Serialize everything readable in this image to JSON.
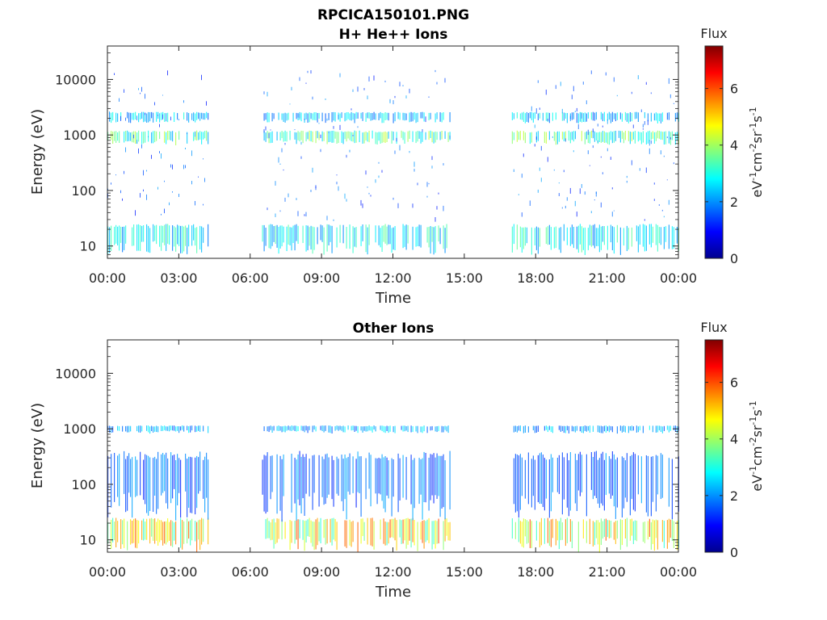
{
  "figure": {
    "title_line1": "RPCICA150101.PNG"
  },
  "chart_data": [
    {
      "type": "heatmap",
      "title": "H+ He++ Ions",
      "xlabel": "Time",
      "ylabel": "Energy (eV)",
      "x_ticks": [
        "00:00",
        "03:00",
        "06:00",
        "09:00",
        "12:00",
        "15:00",
        "18:00",
        "21:00",
        "00:00"
      ],
      "x_range_hours": [
        0,
        24
      ],
      "y_scale": "log",
      "y_range": [
        6,
        40000
      ],
      "y_ticks": [
        10,
        100,
        1000,
        10000
      ],
      "y_tick_labels": [
        "10",
        "100",
        "1000",
        "10000"
      ],
      "colorbar": {
        "title": "Flux",
        "label": "eV-1cm-2sr-1s-1",
        "range": [
          0,
          7.5
        ],
        "ticks": [
          0,
          2,
          4,
          6
        ],
        "colormap": "jet"
      },
      "data_intervals_hours": [
        [
          0,
          4.25
        ],
        [
          6.5,
          14.4
        ],
        [
          17.0,
          24
        ]
      ],
      "bands": [
        {
          "energy_range_eV": [
            8,
            25
          ],
          "level": 3.0
        },
        {
          "energy_range_eV": [
            700,
            1200
          ],
          "level": 3.6
        },
        {
          "energy_range_eV": [
            1700,
            2600
          ],
          "level": 2.6
        },
        {
          "energy_range_eV": [
            30,
            15000
          ],
          "level": 1.8
        }
      ]
    },
    {
      "type": "heatmap",
      "title": "Other Ions",
      "xlabel": "Time",
      "ylabel": "Energy (eV)",
      "x_ticks": [
        "00:00",
        "03:00",
        "06:00",
        "09:00",
        "12:00",
        "15:00",
        "18:00",
        "21:00",
        "00:00"
      ],
      "x_range_hours": [
        0,
        24
      ],
      "y_scale": "log",
      "y_range": [
        6,
        40000
      ],
      "y_ticks": [
        10,
        100,
        1000,
        10000
      ],
      "y_tick_labels": [
        "10",
        "100",
        "1000",
        "10000"
      ],
      "colorbar": {
        "title": "Flux",
        "label": "eV-1cm-2sr-1s-1",
        "range": [
          0,
          7.5
        ],
        "ticks": [
          0,
          2,
          4,
          6
        ],
        "colormap": "jet"
      },
      "data_intervals_hours": [
        [
          0,
          4.25
        ],
        [
          6.5,
          14.4
        ],
        [
          17.0,
          24
        ]
      ],
      "bands": [
        {
          "energy_range_eV": [
            7,
            25
          ],
          "level": 5.0
        },
        {
          "energy_range_eV": [
            850,
            1150
          ],
          "level": 2.4
        },
        {
          "energy_range_eV": [
            30,
            400
          ],
          "level": 1.9
        }
      ]
    }
  ]
}
